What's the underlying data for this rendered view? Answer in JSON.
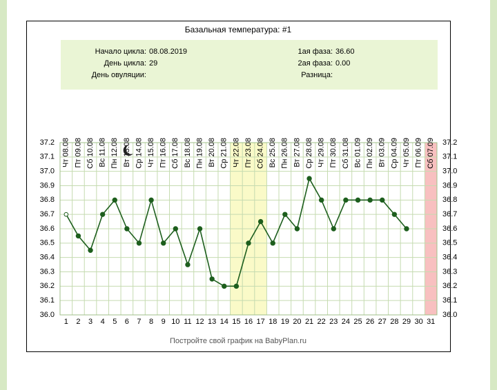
{
  "chart_data": {
    "type": "line",
    "title": "Базальная температура: #1",
    "info": {
      "left": [
        {
          "label": "Начало цикла:",
          "value": "08.08.2019"
        },
        {
          "label": "День цикла:",
          "value": 29
        },
        {
          "label": "День овуляции:"
        }
      ],
      "right": [
        {
          "label": "1ая фаза:",
          "value": "36.60"
        },
        {
          "label": "2ая фаза:",
          "value": "0.00"
        },
        {
          "label": "Разница:"
        }
      ]
    },
    "dates": [
      "Чт 08.08",
      "Пт 09.08",
      "Сб 10.08",
      "Вс 11.08",
      "Пн 12.08",
      "Вт 13.08",
      "Ср 14.08",
      "Чт 15.08",
      "Пт 16.08",
      "Сб 17.08",
      "Вс 18.08",
      "Пн 19.08",
      "Вт 20.08",
      "Ср 21.08",
      "Чт 22.08",
      "Пт 23.08",
      "Сб 24.08",
      "Вс 25.08",
      "Пн 26.08",
      "Вт 27.08",
      "Ср 28.08",
      "Чт 29.08",
      "Пт 30.08",
      "Сб 31.08",
      "Вс 01.09",
      "Пн 02.09",
      "Вт 03.09",
      "Ср 04.09",
      "Чт 05.09",
      "Пт 06.09",
      "Сб 07.09"
    ],
    "categories": [
      "1",
      "2",
      "3",
      "4",
      "5",
      "6",
      "7",
      "8",
      "9",
      "10",
      "11",
      "12",
      "13",
      "14",
      "15",
      "16",
      "17",
      "18",
      "19",
      "20",
      "21",
      "22",
      "23",
      "24",
      "25",
      "26",
      "27",
      "28",
      "29",
      "30",
      "31"
    ],
    "values": [
      36.7,
      36.55,
      36.45,
      36.7,
      36.8,
      36.6,
      36.5,
      36.8,
      36.5,
      36.6,
      36.35,
      36.6,
      36.25,
      36.2,
      36.2,
      36.5,
      36.65,
      36.5,
      36.7,
      36.6,
      36.95,
      36.8,
      36.6,
      36.8,
      36.8,
      36.8,
      36.8,
      36.7,
      36.6,
      null,
      null
    ],
    "color": "#1d5e1d",
    "ylim": [
      36.0,
      37.2
    ],
    "yticks": [
      {
        "value": 36.0,
        "label": "36.0"
      },
      36.1,
      36.2,
      36.3,
      36.4,
      36.5,
      36.6,
      36.7,
      36.8,
      36.9,
      {
        "value": 37.0,
        "label": "37.0"
      },
      37.1,
      37.2
    ],
    "grid": true,
    "highlight_days": [
      15,
      16,
      17
    ],
    "highlight_color": "#fafac8",
    "end_day": 31,
    "end_color": "#f8c0c0",
    "footer": "Постройте свой график на BabyPlan.ru"
  }
}
